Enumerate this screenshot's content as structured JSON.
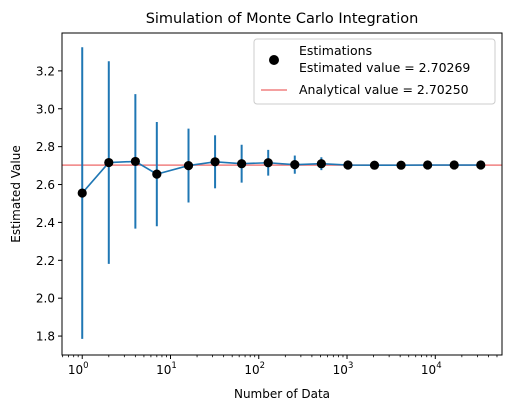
{
  "chart_data": {
    "type": "scatter",
    "title": "Simulation of Monte Carlo Integration",
    "xlabel": "Number of Data",
    "ylabel": "Estimated Value",
    "xscale": "log",
    "xlim": [
      0.59,
      57000
    ],
    "ylim": [
      1.7,
      3.4
    ],
    "xticks": [
      {
        "value": 1,
        "base": "10",
        "exp": "0"
      },
      {
        "value": 10,
        "base": "10",
        "exp": "1"
      },
      {
        "value": 100,
        "base": "10",
        "exp": "2"
      },
      {
        "value": 1000,
        "base": "10",
        "exp": "3"
      },
      {
        "value": 10000,
        "base": "10",
        "exp": "4"
      }
    ],
    "yticks": [
      "1.8",
      "2.0",
      "2.2",
      "2.4",
      "2.6",
      "2.8",
      "3.0",
      "3.2"
    ],
    "grid": false,
    "legend_position": "upper-right",
    "series": [
      {
        "name": "Estimations",
        "x": [
          1,
          2,
          4,
          7,
          16,
          32,
          64,
          128,
          256,
          512,
          1024,
          2048,
          4096,
          8192,
          16384,
          32768
        ],
        "y": [
          2.555,
          2.716,
          2.722,
          2.655,
          2.7,
          2.72,
          2.71,
          2.715,
          2.705,
          2.71,
          2.703,
          2.702,
          2.702,
          2.703,
          2.703,
          2.703
        ],
        "error": [
          0.77,
          0.535,
          0.355,
          0.275,
          0.195,
          0.14,
          0.1,
          0.068,
          0.048,
          0.034,
          0.024,
          0.017,
          0.012,
          0.0085,
          0.006,
          0.0043
        ]
      }
    ],
    "reference_line": {
      "value": 2.7025,
      "color": "#f08080"
    },
    "legend": {
      "scatter_label": "Estimations",
      "estimated_text": "Estimated value = 2.70269",
      "line_label": "Analytical value = 2.70250"
    },
    "colors": {
      "marker": "#000000",
      "line": "#1f77b4",
      "errorbar": "#1f77b4",
      "reference": "#f08080"
    }
  }
}
